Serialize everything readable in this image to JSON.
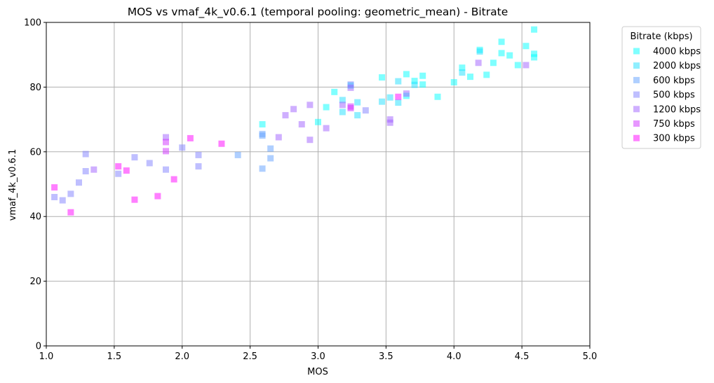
{
  "chart_data": {
    "type": "scatter",
    "title": "MOS vs vmaf_4k_v0.6.1 (temporal pooling: geometric_mean) - Bitrate",
    "xlabel": "MOS",
    "ylabel": "vmaf_4k_v0.6.1",
    "xlim": [
      1.0,
      5.0
    ],
    "ylim": [
      0,
      100
    ],
    "xticks": [
      "1.0",
      "1.5",
      "2.0",
      "2.5",
      "3.0",
      "3.5",
      "4.0",
      "4.5",
      "5.0"
    ],
    "yticks": [
      "0",
      "20",
      "40",
      "60",
      "80",
      "100"
    ],
    "grid": true,
    "marker": "square",
    "legend": {
      "title": "Bitrate (kbps)",
      "placement": "outside-top-right"
    },
    "series": [
      {
        "name": "4000 kbps",
        "color": "#00ffff",
        "points": [
          [
            4.59,
            97.8
          ],
          [
            4.35,
            94.0
          ],
          [
            4.53,
            92.7
          ],
          [
            4.19,
            91.5
          ],
          [
            4.35,
            90.5
          ],
          [
            4.59,
            90.3
          ],
          [
            4.41,
            89.8
          ],
          [
            4.59,
            89.2
          ],
          [
            4.29,
            87.5
          ],
          [
            4.47,
            86.8
          ],
          [
            4.06,
            86.0
          ],
          [
            3.65,
            84.0
          ],
          [
            4.24,
            83.8
          ],
          [
            3.77,
            83.5
          ],
          [
            4.12,
            83.2
          ],
          [
            3.47,
            83.0
          ],
          [
            3.71,
            81.9
          ],
          [
            4.0,
            81.5
          ],
          [
            3.77,
            80.8
          ],
          [
            3.24,
            80.5
          ],
          [
            3.12,
            78.5
          ],
          [
            3.65,
            77.3
          ],
          [
            3.88,
            77.0
          ],
          [
            3.06,
            73.8
          ],
          [
            3.0,
            69.2
          ],
          [
            2.59,
            68.5
          ]
        ]
      },
      {
        "name": "2000 kbps",
        "color": "#1fdfff",
        "points": [
          [
            4.19,
            91.0
          ],
          [
            4.06,
            84.5
          ],
          [
            3.59,
            81.8
          ],
          [
            3.71,
            80.7
          ],
          [
            3.18,
            76.0
          ],
          [
            3.53,
            76.8
          ],
          [
            3.29,
            75.3
          ],
          [
            3.47,
            75.5
          ],
          [
            3.59,
            75.2
          ],
          [
            3.18,
            72.3
          ],
          [
            3.29,
            71.3
          ]
        ]
      },
      {
        "name": "600 kbps",
        "color": "#5fa0ff",
        "points": [
          [
            2.59,
            65.5
          ],
          [
            2.59,
            65.0
          ],
          [
            2.65,
            61.0
          ],
          [
            2.41,
            59.0
          ],
          [
            2.65,
            58.0
          ],
          [
            2.59,
            54.8
          ]
        ]
      },
      {
        "name": "500 kbps",
        "color": "#8080ff",
        "points": [
          [
            1.29,
            59.3
          ],
          [
            2.0,
            61.3
          ],
          [
            1.65,
            58.3
          ],
          [
            2.12,
            59.0
          ],
          [
            1.76,
            56.5
          ],
          [
            2.12,
            55.5
          ],
          [
            1.29,
            54.0
          ],
          [
            1.53,
            53.2
          ],
          [
            1.88,
            54.5
          ],
          [
            1.24,
            50.5
          ],
          [
            1.18,
            47.0
          ],
          [
            1.06,
            46.0
          ],
          [
            1.12,
            45.0
          ],
          [
            3.24,
            80.8
          ],
          [
            3.35,
            72.8
          ]
        ]
      },
      {
        "name": "1200 kbps",
        "color": "#9f5fff",
        "points": [
          [
            4.18,
            87.5
          ],
          [
            4.53,
            86.8
          ],
          [
            3.65,
            78.0
          ],
          [
            3.24,
            79.8
          ],
          [
            3.18,
            74.5
          ],
          [
            2.94,
            74.5
          ],
          [
            2.82,
            73.2
          ],
          [
            2.76,
            71.3
          ],
          [
            3.53,
            70.0
          ],
          [
            3.53,
            69.0
          ],
          [
            2.88,
            68.5
          ],
          [
            3.06,
            67.3
          ],
          [
            2.71,
            64.5
          ],
          [
            2.94,
            63.7
          ],
          [
            1.88,
            64.5
          ],
          [
            1.35,
            54.5
          ]
        ]
      },
      {
        "name": "750 kbps",
        "color": "#cf2fff",
        "points": [
          [
            1.88,
            63.0
          ],
          [
            1.88,
            60.2
          ],
          [
            3.24,
            74.0
          ],
          [
            3.24,
            73.5
          ]
        ]
      },
      {
        "name": "300 kbps",
        "color": "#ff00ff",
        "points": [
          [
            3.59,
            77.0
          ],
          [
            2.29,
            62.5
          ],
          [
            2.06,
            64.2
          ],
          [
            1.59,
            54.2
          ],
          [
            1.53,
            55.5
          ],
          [
            1.94,
            51.5
          ],
          [
            1.06,
            49.0
          ],
          [
            1.82,
            46.3
          ],
          [
            1.65,
            45.2
          ],
          [
            1.18,
            41.3
          ]
        ]
      }
    ]
  }
}
